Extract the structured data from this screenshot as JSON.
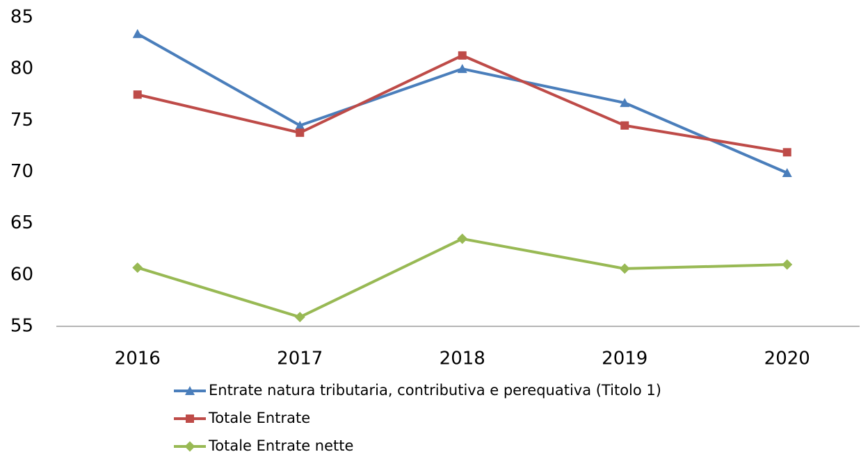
{
  "chart_data": {
    "type": "line",
    "categories": [
      "2016",
      "2017",
      "2018",
      "2019",
      "2020"
    ],
    "series": [
      {
        "name": "Entrate natura tributaria, contributiva e perequativa (Titolo 1)",
        "color": "#4a7ebb",
        "marker": "triangle",
        "values": [
          83.4,
          74.5,
          80.0,
          76.7,
          69.9
        ]
      },
      {
        "name": "Totale Entrate",
        "color": "#be4b48",
        "marker": "square",
        "values": [
          77.5,
          73.8,
          81.3,
          74.5,
          71.9
        ]
      },
      {
        "name": "Totale Entrate nette",
        "color": "#98b954",
        "marker": "diamond",
        "values": [
          60.7,
          55.9,
          63.5,
          60.6,
          61.0
        ]
      }
    ],
    "ylim": [
      55,
      85
    ],
    "yticks": [
      55,
      60,
      65,
      70,
      75,
      80,
      85
    ],
    "grid": false,
    "legend": "bottom"
  }
}
